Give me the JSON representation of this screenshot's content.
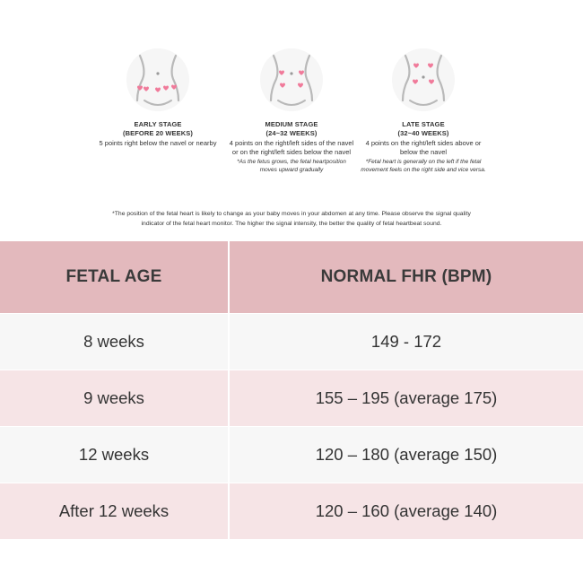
{
  "stages": [
    {
      "title_line1": "EARLY STAGE",
      "title_line2": "(BEFORE 20 WEEKS)",
      "desc_lines": [
        "5 points right below the navel or nearby"
      ],
      "note_lines": [],
      "icon": "belly-hearts-icon"
    },
    {
      "title_line1": "MEDIUM STAGE",
      "title_line2": "(24~32 WEEKS)",
      "desc_lines": [
        "4 points on the right/left sides of the navel",
        "or on the right/left sides below the navel"
      ],
      "note_lines": [
        "*As the fetus grows, the fetal heartposition",
        "moves upward gradually"
      ],
      "icon": "belly-hearts-icon"
    },
    {
      "title_line1": "LATE STAGE",
      "title_line2": "(32~40 WEEKS)",
      "desc_lines": [
        "4 points on the right/left sides above or",
        "below the navel"
      ],
      "note_lines": [
        "*Fetal heart is generally on the left if the fetal",
        "movement feels on the right side and vice versa."
      ],
      "icon": "belly-hearts-icon"
    }
  ],
  "footnote_lines": [
    "*The position of the fetal heart is likely to change as your baby moves in your abdomen at any time. Please observe the signal quality",
    "indicator of the fetal heart monitor. The higher the signal intensity, the better the quality of fetal heartbeat sound."
  ],
  "table": {
    "headers": [
      "FETAL AGE",
      "NORMAL FHR (BPM)"
    ],
    "rows": [
      [
        "8 weeks",
        "149 - 172"
      ],
      [
        "9 weeks",
        "155 – 195 (average 175)"
      ],
      [
        "12 weeks",
        "120 – 180 (average 150)"
      ],
      [
        "After 12 weeks",
        "120 – 160 (average 140)"
      ]
    ]
  },
  "colors": {
    "header_bg": "#e3b9bd",
    "row_light": "#f7f7f7",
    "row_pink": "#f6e4e6",
    "heart": "#f07a9a"
  }
}
